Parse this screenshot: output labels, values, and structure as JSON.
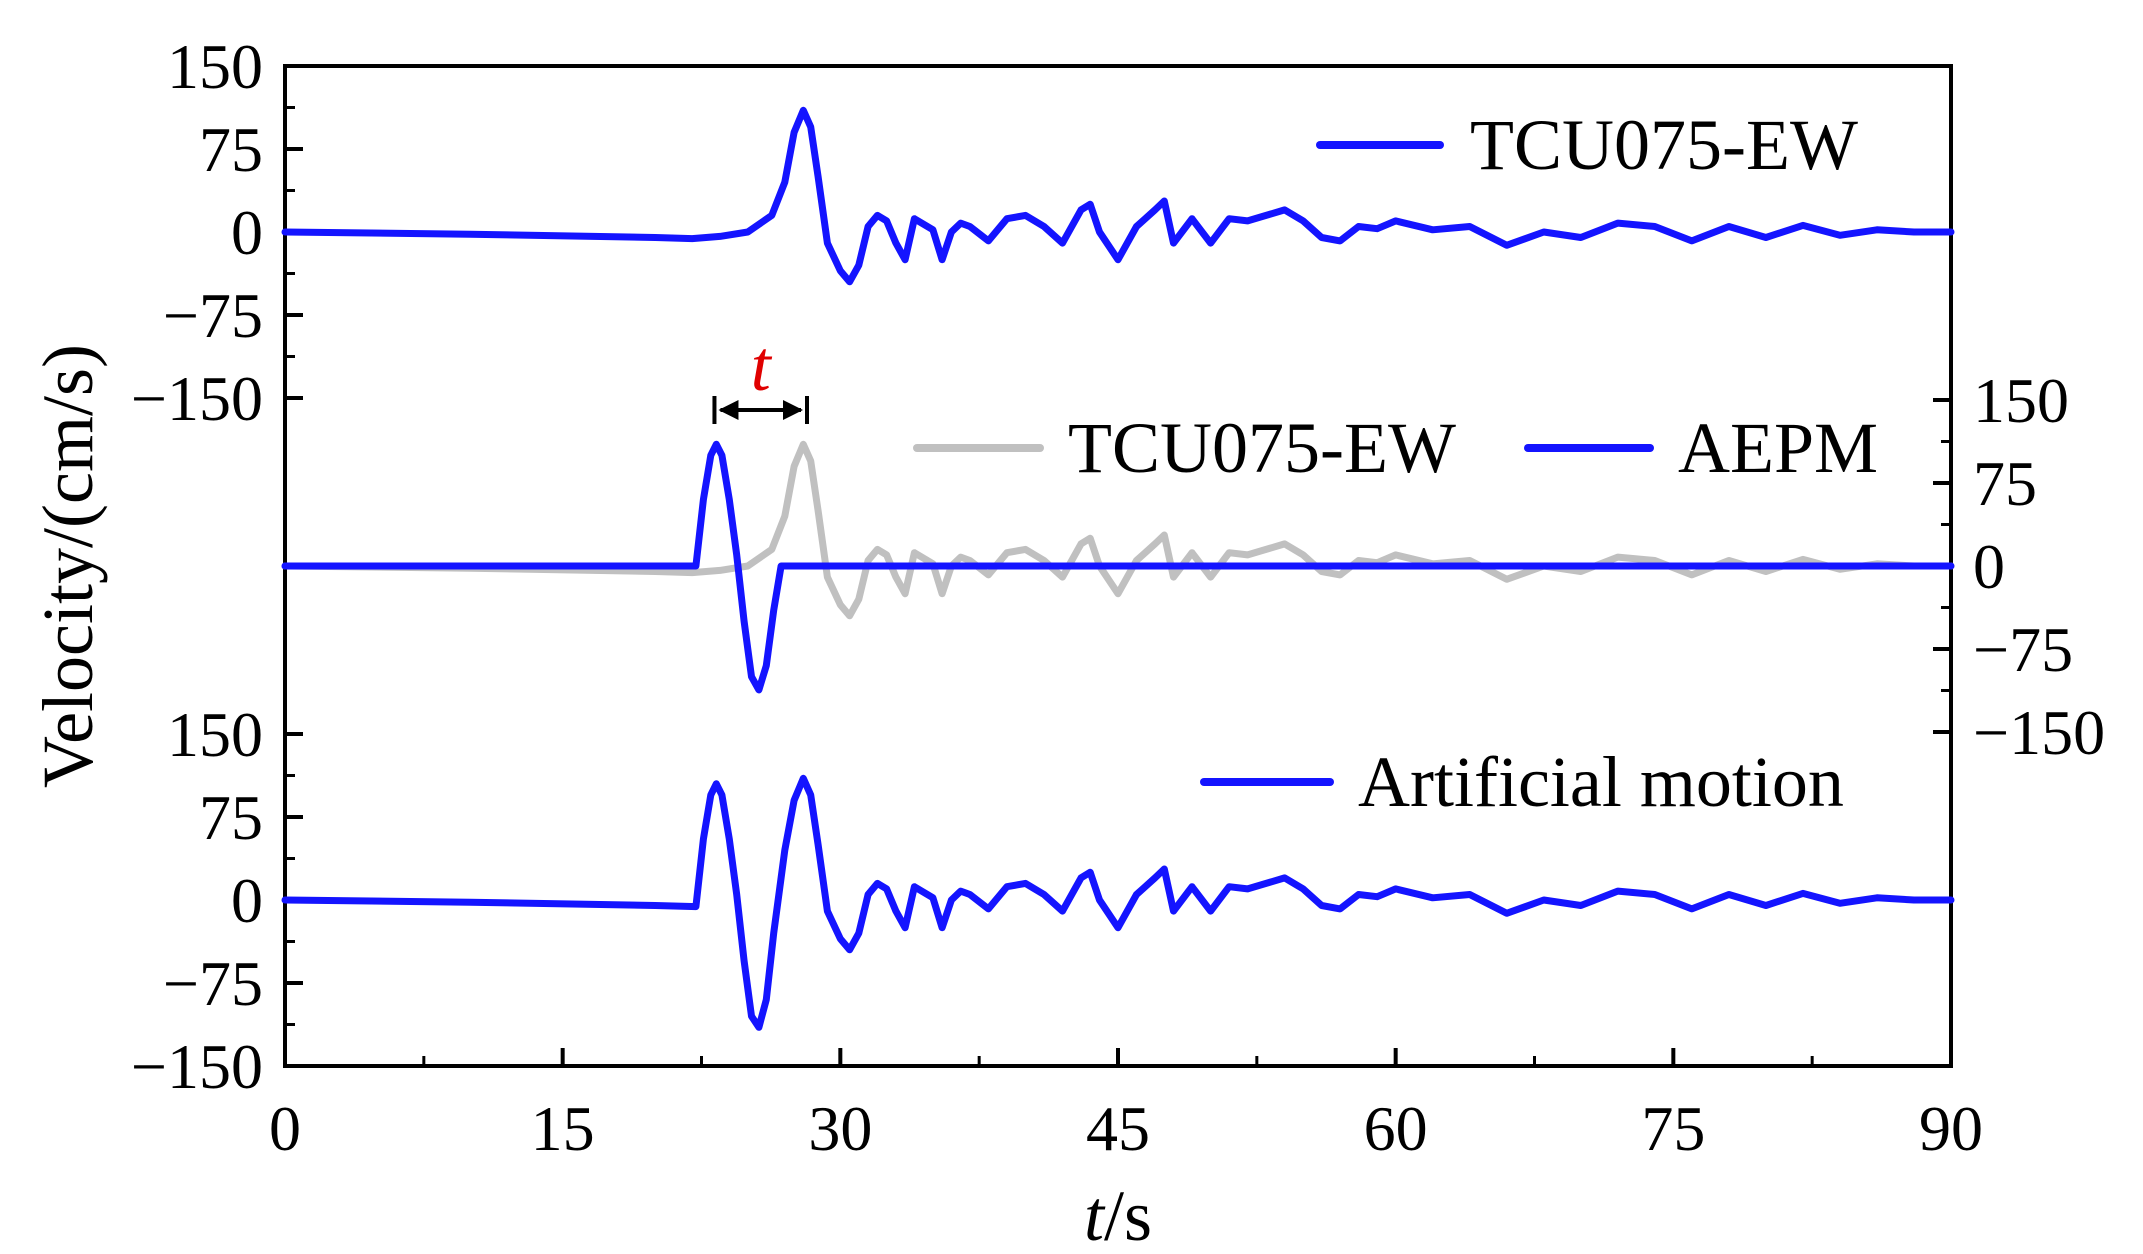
{
  "chart_data": [
    {
      "type": "line",
      "panel": "top",
      "xlim": [
        0,
        90
      ],
      "ylim": [
        -150,
        150
      ],
      "yticks": [
        -150,
        -75,
        0,
        75,
        150
      ],
      "y_axis_side": "left",
      "legend_placement": "top-right",
      "series": [
        {
          "name": "TCU075-EW",
          "color": "#1414ff",
          "x": [
            0,
            10,
            20,
            22,
            23.5,
            25,
            26.3,
            27,
            27.5,
            28,
            28.4,
            28.8,
            29.3,
            30,
            30.5,
            31,
            31.5,
            32,
            32.5,
            33,
            33.5,
            34,
            35,
            35.5,
            36,
            36.5,
            37,
            38,
            39,
            40,
            41,
            42,
            43,
            43.5,
            44,
            45,
            46,
            47,
            47.5,
            48,
            49,
            50,
            51,
            52,
            53,
            54,
            55,
            56,
            57,
            58,
            59,
            60,
            62,
            64,
            66,
            68,
            70,
            72,
            74,
            76,
            78,
            80,
            82,
            84,
            86,
            88,
            90
          ],
          "values": [
            0,
            -2,
            -5,
            -6,
            -4,
            0,
            15,
            45,
            90,
            110,
            95,
            50,
            -10,
            -35,
            -45,
            -30,
            5,
            15,
            10,
            -10,
            -25,
            12,
            2,
            -25,
            0,
            8,
            5,
            -8,
            12,
            15,
            5,
            -10,
            20,
            25,
            0,
            -25,
            5,
            20,
            28,
            -10,
            12,
            -10,
            12,
            10,
            15,
            20,
            10,
            -5,
            -8,
            5,
            3,
            10,
            2,
            5,
            -12,
            0,
            -5,
            8,
            5,
            -8,
            5,
            -5,
            6,
            -3,
            2,
            0,
            0
          ]
        }
      ]
    },
    {
      "type": "line",
      "panel": "middle",
      "xlim": [
        0,
        90
      ],
      "ylim": [
        -150,
        150
      ],
      "yticks": [
        -150,
        -75,
        0,
        75,
        150
      ],
      "y_axis_side": "right",
      "legend_placement": "top-right",
      "annotation": "t",
      "annotation_color": "#e00000",
      "annotation_span": [
        23.2,
        28.2
      ],
      "series": [
        {
          "name": "TCU075-EW",
          "color": "#c0c0c0",
          "x": [
            0,
            10,
            20,
            22,
            23.5,
            25,
            26.3,
            27,
            27.5,
            28,
            28.4,
            28.8,
            29.3,
            30,
            30.5,
            31,
            31.5,
            32,
            32.5,
            33,
            33.5,
            34,
            35,
            35.5,
            36,
            36.5,
            37,
            38,
            39,
            40,
            41,
            42,
            43,
            43.5,
            44,
            45,
            46,
            47,
            47.5,
            48,
            49,
            50,
            51,
            52,
            53,
            54,
            55,
            56,
            57,
            58,
            59,
            60,
            62,
            64,
            66,
            68,
            70,
            72,
            74,
            76,
            78,
            80,
            82,
            84,
            86,
            88,
            90
          ],
          "values": [
            0,
            -2,
            -5,
            -6,
            -4,
            0,
            15,
            45,
            90,
            110,
            95,
            50,
            -10,
            -35,
            -45,
            -30,
            5,
            15,
            10,
            -10,
            -25,
            12,
            2,
            -25,
            0,
            8,
            5,
            -8,
            12,
            15,
            5,
            -10,
            20,
            25,
            0,
            -25,
            5,
            20,
            28,
            -10,
            12,
            -10,
            12,
            10,
            15,
            20,
            10,
            -5,
            -8,
            5,
            3,
            10,
            2,
            5,
            -12,
            0,
            -5,
            8,
            5,
            -8,
            5,
            -5,
            6,
            -3,
            2,
            0,
            0
          ]
        },
        {
          "name": "AEPM",
          "color": "#1414ff",
          "x": [
            0,
            22.2,
            22.6,
            23.0,
            23.3,
            23.6,
            24.0,
            24.4,
            24.8,
            25.2,
            25.6,
            26.0,
            26.4,
            26.8,
            90
          ],
          "values": [
            0,
            0,
            60,
            100,
            110,
            100,
            60,
            10,
            -50,
            -100,
            -112,
            -90,
            -40,
            0,
            0
          ]
        }
      ]
    },
    {
      "type": "line",
      "panel": "bottom",
      "xlim": [
        0,
        90
      ],
      "ylim": [
        -150,
        150
      ],
      "yticks": [
        -150,
        -75,
        0,
        75,
        150
      ],
      "y_axis_side": "left",
      "legend_placement": "top-right",
      "series": [
        {
          "name": "Artificial motion",
          "color": "#1414ff",
          "x": [
            0,
            10,
            20,
            22.2,
            22.6,
            23.0,
            23.3,
            23.6,
            24.0,
            24.4,
            24.8,
            25.2,
            25.6,
            26.0,
            26.4,
            26.8,
            27,
            27.5,
            28,
            28.4,
            28.8,
            29.3,
            30,
            30.5,
            31,
            31.5,
            32,
            32.5,
            33,
            33.5,
            34,
            35,
            35.5,
            36,
            36.5,
            37,
            38,
            39,
            40,
            41,
            42,
            43,
            43.5,
            44,
            45,
            46,
            47,
            47.5,
            48,
            49,
            50,
            51,
            52,
            53,
            54,
            55,
            56,
            57,
            58,
            59,
            60,
            62,
            64,
            66,
            68,
            70,
            72,
            74,
            76,
            78,
            80,
            82,
            84,
            86,
            88,
            90
          ],
          "values": [
            0,
            -2,
            -5,
            -6,
            55,
            95,
            105,
            95,
            55,
            5,
            -55,
            -105,
            -115,
            -90,
            -30,
            20,
            45,
            90,
            110,
            95,
            50,
            -10,
            -35,
            -45,
            -30,
            5,
            15,
            10,
            -10,
            -25,
            12,
            2,
            -25,
            0,
            8,
            5,
            -8,
            12,
            15,
            5,
            -10,
            20,
            25,
            0,
            -25,
            5,
            20,
            28,
            -10,
            12,
            -10,
            12,
            10,
            15,
            20,
            10,
            -5,
            -8,
            5,
            3,
            10,
            2,
            5,
            -12,
            0,
            -5,
            8,
            5,
            -8,
            5,
            -5,
            6,
            -3,
            2,
            0,
            0
          ]
        }
      ]
    }
  ],
  "axes": {
    "ylabel": "Velocity/(cm/s)",
    "xlabel_italic": "t",
    "xlabel_rest": "/s",
    "xticks": [
      0,
      15,
      30,
      45,
      60,
      75,
      90
    ],
    "xtick_labels": [
      "0",
      "15",
      "30",
      "45",
      "60",
      "75",
      "90"
    ],
    "ytick_labels": [
      "150",
      "75",
      "0",
      "−75",
      "−150"
    ]
  }
}
